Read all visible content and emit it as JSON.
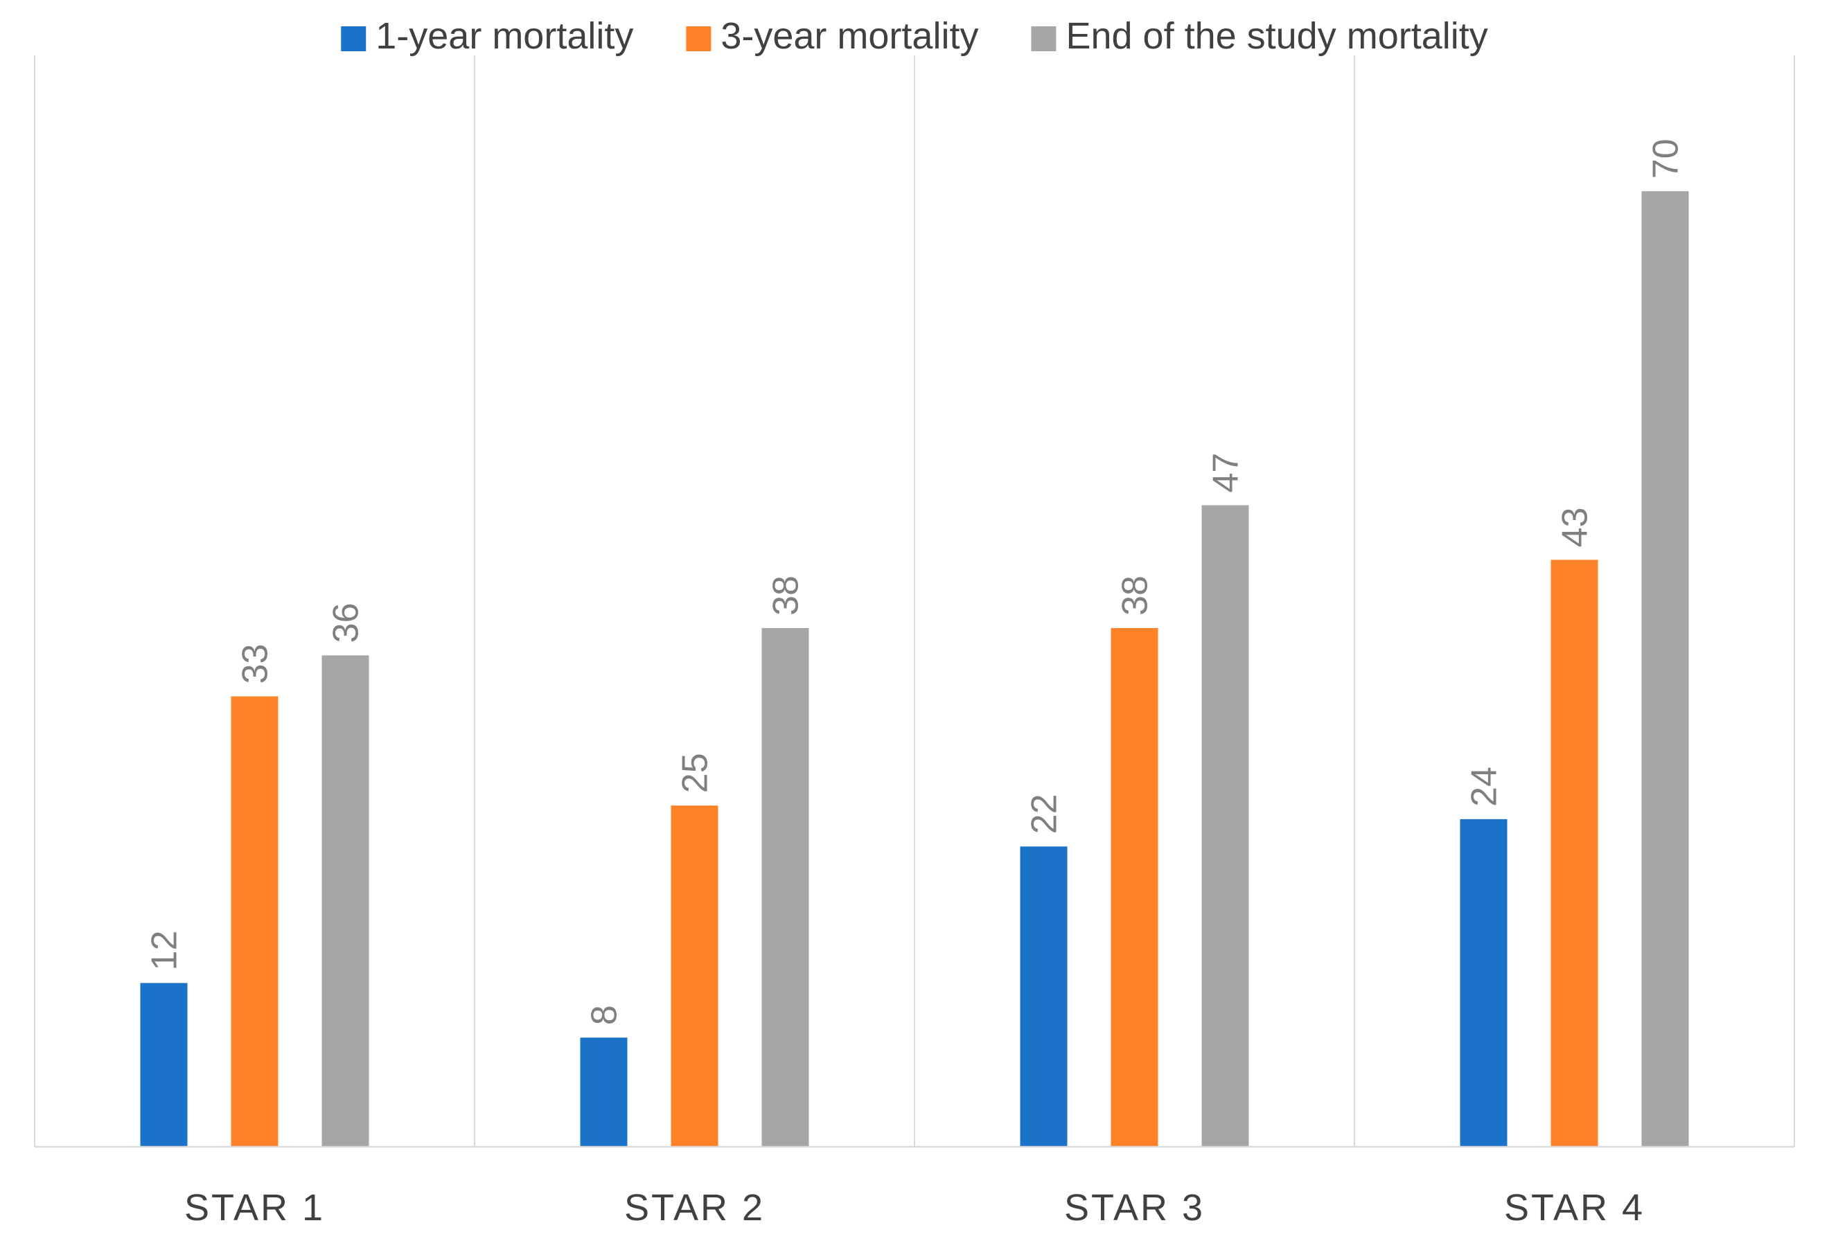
{
  "chart_data": {
    "type": "bar",
    "title": "",
    "xlabel": "",
    "ylabel": "",
    "categories": [
      "STAR 1",
      "STAR 2",
      "STAR 3",
      "STAR 4"
    ],
    "series": [
      {
        "name": "1-year mortality",
        "values": [
          12,
          8,
          22,
          24
        ],
        "color": "#1a73c9"
      },
      {
        "name": "3-year mortality",
        "values": [
          33,
          25,
          38,
          43
        ],
        "color": "#ff8228"
      },
      {
        "name": "End of the study mortality",
        "values": [
          36,
          38,
          47,
          70
        ],
        "color": "#a6a6a6"
      }
    ],
    "ylim": [
      0,
      80
    ],
    "grid": "vertical category separators",
    "legend_position": "top-center",
    "data_labels": "rotated, above bars"
  }
}
